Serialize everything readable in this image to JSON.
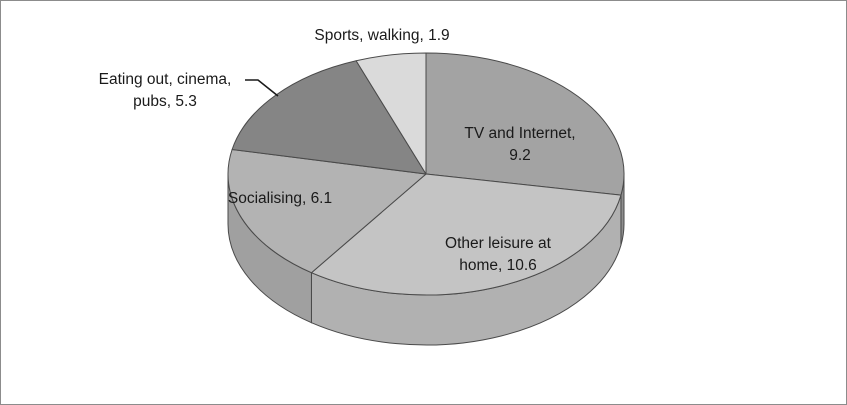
{
  "chart_data": {
    "type": "pie",
    "title": "",
    "slices": [
      {
        "label": "TV and Internet",
        "value": 9.2,
        "color": "#a3a3a3",
        "side_color": "#8e8e8e",
        "label_lines": [
          "TV and Internet,",
          "9.2"
        ]
      },
      {
        "label": "Other leisure at home",
        "value": 10.6,
        "color": "#c4c4c4",
        "side_color": "#b1b1b1",
        "label_lines": [
          "Other leisure at",
          "home, 10.6"
        ]
      },
      {
        "label": "Socialising",
        "value": 6.1,
        "color": "#b3b3b3",
        "side_color": "#a0a0a0",
        "label_lines": [
          "Socialising, 6.1"
        ]
      },
      {
        "label": "Eating out, cinema, pubs",
        "value": 5.3,
        "color": "#858585",
        "side_color": "#747474",
        "label_lines": [
          "Eating out, cinema,",
          "pubs, 5.3"
        ]
      },
      {
        "label": "Sports, walking",
        "value": 1.9,
        "color": "#dadada",
        "side_color": "#c9c9c9",
        "label_lines": [
          "Sports, walking, 1.9"
        ]
      }
    ],
    "start_position": "top",
    "direction": "clockwise",
    "style": "3d-oval",
    "edge_color": "#4a4a4a",
    "legend": "none"
  }
}
